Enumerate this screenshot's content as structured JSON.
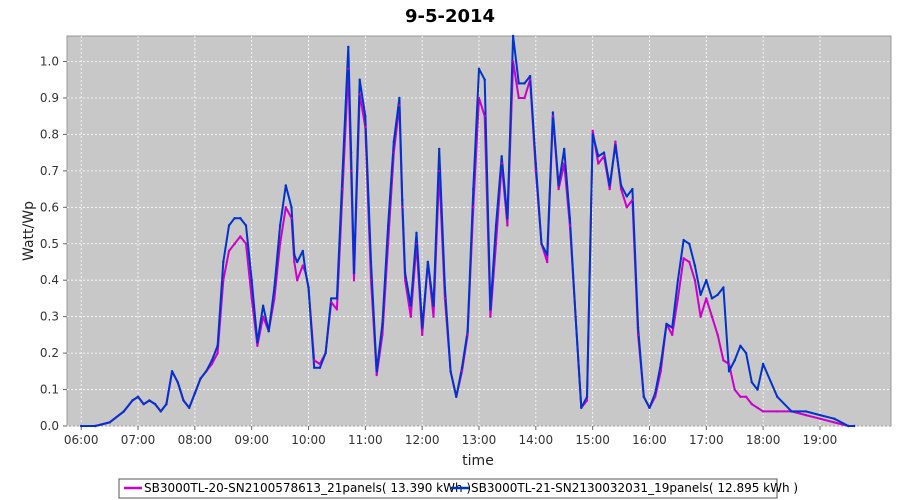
{
  "chart_data": {
    "type": "line",
    "title": "9-5-2014",
    "xlabel": "time",
    "ylabel": "Watt/Wp",
    "xlim": [
      5.75,
      20.25
    ],
    "ylim": [
      0.0,
      1.07
    ],
    "x_ticks": [
      "06:00",
      "07:00",
      "08:00",
      "09:00",
      "10:00",
      "11:00",
      "12:00",
      "13:00",
      "14:00",
      "15:00",
      "16:00",
      "17:00",
      "18:00",
      "19:00"
    ],
    "y_ticks": [
      "0.0",
      "0.1",
      "0.2",
      "0.3",
      "0.4",
      "0.5",
      "0.6",
      "0.7",
      "0.8",
      "0.9",
      "1.0"
    ],
    "grid": true,
    "legend_position": "bottom",
    "colors": {
      "plot_background": "#c8c8c8",
      "grid": "#ffffff"
    },
    "series": [
      {
        "name": "SB3000TL-20-SN2100578613_21panels( 13.390 kWh )",
        "color": "#cc00cc",
        "x": [
          6.0,
          6.25,
          6.5,
          6.75,
          6.9,
          7.0,
          7.1,
          7.2,
          7.3,
          7.4,
          7.5,
          7.6,
          7.7,
          7.8,
          7.9,
          8.0,
          8.1,
          8.2,
          8.3,
          8.4,
          8.5,
          8.6,
          8.7,
          8.8,
          8.9,
          9.0,
          9.1,
          9.2,
          9.3,
          9.4,
          9.5,
          9.6,
          9.7,
          9.75,
          9.8,
          9.9,
          9.95,
          10.0,
          10.1,
          10.2,
          10.3,
          10.4,
          10.5,
          10.6,
          10.7,
          10.75,
          10.8,
          10.9,
          11.0,
          11.1,
          11.2,
          11.3,
          11.4,
          11.5,
          11.6,
          11.65,
          11.7,
          11.8,
          11.9,
          12.0,
          12.1,
          12.2,
          12.3,
          12.4,
          12.5,
          12.6,
          12.7,
          12.8,
          12.9,
          13.0,
          13.1,
          13.2,
          13.3,
          13.4,
          13.5,
          13.6,
          13.7,
          13.8,
          13.9,
          14.0,
          14.1,
          14.2,
          14.3,
          14.4,
          14.5,
          14.6,
          14.7,
          14.8,
          14.9,
          15.0,
          15.1,
          15.2,
          15.3,
          15.4,
          15.5,
          15.6,
          15.7,
          15.8,
          15.9,
          16.0,
          16.1,
          16.2,
          16.3,
          16.4,
          16.5,
          16.6,
          16.7,
          16.8,
          16.9,
          17.0,
          17.1,
          17.2,
          17.3,
          17.4,
          17.5,
          17.6,
          17.7,
          17.8,
          17.9,
          18.0,
          18.25,
          18.5,
          18.75,
          19.0,
          19.25,
          19.5,
          19.6
        ],
        "values": [
          0.0,
          0.0,
          0.01,
          0.04,
          0.07,
          0.08,
          0.06,
          0.07,
          0.06,
          0.04,
          0.06,
          0.15,
          0.12,
          0.07,
          0.05,
          0.09,
          0.13,
          0.15,
          0.17,
          0.2,
          0.4,
          0.48,
          0.5,
          0.52,
          0.5,
          0.35,
          0.22,
          0.3,
          0.26,
          0.35,
          0.5,
          0.6,
          0.57,
          0.45,
          0.4,
          0.44,
          0.42,
          0.38,
          0.18,
          0.17,
          0.2,
          0.34,
          0.32,
          0.65,
          0.98,
          0.7,
          0.4,
          0.91,
          0.82,
          0.4,
          0.14,
          0.25,
          0.5,
          0.75,
          0.88,
          0.6,
          0.4,
          0.3,
          0.5,
          0.25,
          0.45,
          0.3,
          0.7,
          0.35,
          0.15,
          0.08,
          0.15,
          0.25,
          0.6,
          0.9,
          0.85,
          0.3,
          0.5,
          0.72,
          0.55,
          1.0,
          0.9,
          0.9,
          0.95,
          0.7,
          0.5,
          0.45,
          0.85,
          0.65,
          0.72,
          0.55,
          0.3,
          0.05,
          0.07,
          0.81,
          0.72,
          0.74,
          0.65,
          0.78,
          0.65,
          0.6,
          0.62,
          0.25,
          0.08,
          0.05,
          0.08,
          0.15,
          0.28,
          0.25,
          0.35,
          0.46,
          0.45,
          0.4,
          0.3,
          0.35,
          0.3,
          0.25,
          0.18,
          0.17,
          0.1,
          0.08,
          0.08,
          0.06,
          0.05,
          0.04,
          0.04,
          0.04,
          0.03,
          0.02,
          0.01,
          0.0,
          0.0
        ]
      },
      {
        "name": "SB3000TL-21-SN2130032031_19panels( 12.895 kWh )",
        "color": "#0033cc",
        "x": [
          6.0,
          6.25,
          6.5,
          6.75,
          6.9,
          7.0,
          7.1,
          7.2,
          7.3,
          7.4,
          7.5,
          7.6,
          7.7,
          7.8,
          7.9,
          8.0,
          8.1,
          8.2,
          8.3,
          8.4,
          8.5,
          8.6,
          8.7,
          8.8,
          8.9,
          9.0,
          9.1,
          9.2,
          9.3,
          9.4,
          9.5,
          9.6,
          9.7,
          9.75,
          9.8,
          9.9,
          9.95,
          10.0,
          10.1,
          10.2,
          10.3,
          10.4,
          10.5,
          10.6,
          10.7,
          10.75,
          10.8,
          10.9,
          11.0,
          11.1,
          11.2,
          11.3,
          11.4,
          11.5,
          11.6,
          11.65,
          11.7,
          11.8,
          11.9,
          12.0,
          12.1,
          12.2,
          12.3,
          12.4,
          12.5,
          12.6,
          12.7,
          12.8,
          12.9,
          13.0,
          13.1,
          13.2,
          13.3,
          13.4,
          13.5,
          13.6,
          13.7,
          13.8,
          13.9,
          14.0,
          14.1,
          14.2,
          14.3,
          14.4,
          14.5,
          14.6,
          14.7,
          14.8,
          14.9,
          15.0,
          15.1,
          15.2,
          15.3,
          15.4,
          15.5,
          15.6,
          15.7,
          15.8,
          15.9,
          16.0,
          16.1,
          16.2,
          16.3,
          16.4,
          16.5,
          16.6,
          16.7,
          16.8,
          16.9,
          17.0,
          17.1,
          17.2,
          17.3,
          17.4,
          17.5,
          17.6,
          17.7,
          17.8,
          17.9,
          18.0,
          18.25,
          18.5,
          18.75,
          19.0,
          19.25,
          19.5,
          19.6
        ],
        "values": [
          0.0,
          0.0,
          0.01,
          0.04,
          0.07,
          0.08,
          0.06,
          0.07,
          0.06,
          0.04,
          0.06,
          0.15,
          0.12,
          0.07,
          0.05,
          0.09,
          0.13,
          0.15,
          0.18,
          0.22,
          0.45,
          0.55,
          0.57,
          0.57,
          0.55,
          0.4,
          0.23,
          0.33,
          0.26,
          0.38,
          0.55,
          0.66,
          0.6,
          0.47,
          0.45,
          0.48,
          0.42,
          0.38,
          0.16,
          0.16,
          0.2,
          0.35,
          0.35,
          0.7,
          1.04,
          0.75,
          0.42,
          0.95,
          0.85,
          0.45,
          0.15,
          0.28,
          0.55,
          0.78,
          0.9,
          0.62,
          0.42,
          0.33,
          0.53,
          0.27,
          0.45,
          0.33,
          0.76,
          0.38,
          0.15,
          0.08,
          0.16,
          0.26,
          0.65,
          0.98,
          0.95,
          0.32,
          0.55,
          0.74,
          0.57,
          1.07,
          0.94,
          0.94,
          0.96,
          0.72,
          0.5,
          0.47,
          0.86,
          0.66,
          0.76,
          0.57,
          0.3,
          0.05,
          0.08,
          0.8,
          0.74,
          0.75,
          0.66,
          0.77,
          0.66,
          0.63,
          0.65,
          0.27,
          0.08,
          0.05,
          0.09,
          0.17,
          0.28,
          0.27,
          0.4,
          0.51,
          0.5,
          0.44,
          0.36,
          0.4,
          0.35,
          0.36,
          0.38,
          0.15,
          0.18,
          0.22,
          0.2,
          0.12,
          0.1,
          0.17,
          0.08,
          0.04,
          0.04,
          0.03,
          0.02,
          0.0,
          0.0
        ]
      }
    ]
  }
}
